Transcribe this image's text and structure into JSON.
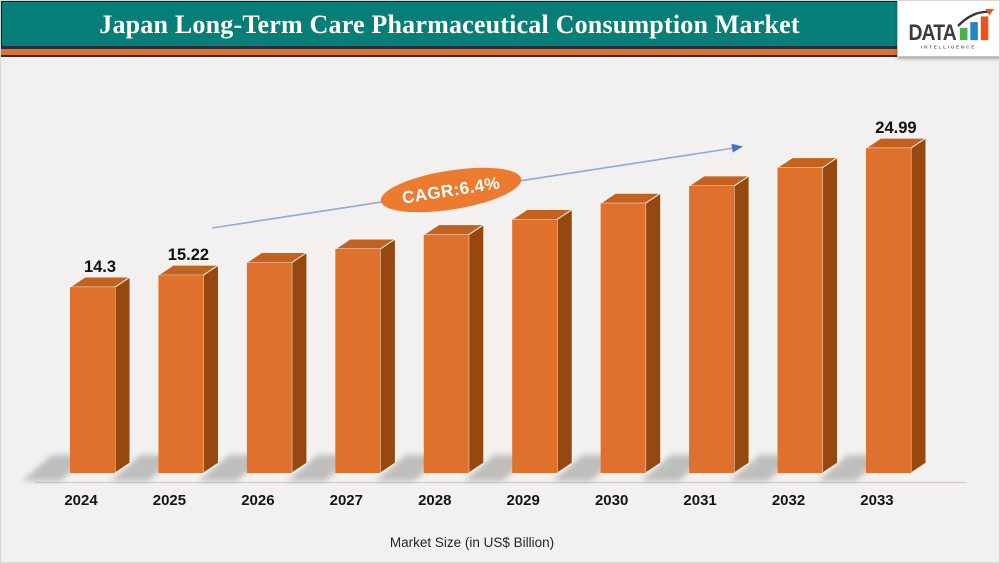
{
  "header": {
    "title": "Japan Long-Term Care Pharmaceutical Consumption Market",
    "logo": {
      "name": "DATA",
      "sub": "INTELLIGENCE"
    }
  },
  "chart_data": {
    "type": "bar",
    "title": "Japan Long-Term Care Pharmaceutical Consumption Market",
    "categories": [
      "2024",
      "2025",
      "2026",
      "2027",
      "2028",
      "2029",
      "2030",
      "2031",
      "2032",
      "2033"
    ],
    "values": [
      14.3,
      15.22,
      16.19,
      17.23,
      18.33,
      19.5,
      20.75,
      22.08,
      23.49,
      24.99
    ],
    "value_labels": [
      "14.3",
      "15.22",
      "",
      "",
      "",
      "",
      "",
      "",
      "",
      "24.99"
    ],
    "annotation": "CAGR:6.4%",
    "xlabel": "Market Size (in US$ Billion)",
    "ylabel": "",
    "ylim": [
      0,
      28
    ],
    "grid": false,
    "legend": "none",
    "style": "3d-orange-bars-with-trend-arrow"
  },
  "colors": {
    "header_teal": "#077E77",
    "header_navy": "#222F44",
    "header_stripe": "#E2702D",
    "background": "#F2F1EF",
    "bar_front": "#E0712C",
    "bar_side": "#96480F",
    "bar_top": "#C2621E",
    "arrow_blue": "#8EA9DB",
    "arrowhead_blue": "#4472C4",
    "ellipse_fill": "#EC7B2F",
    "logo_green": "#4CAE4F",
    "logo_blue": "#2086C8",
    "logo_orange": "#E8541D"
  }
}
